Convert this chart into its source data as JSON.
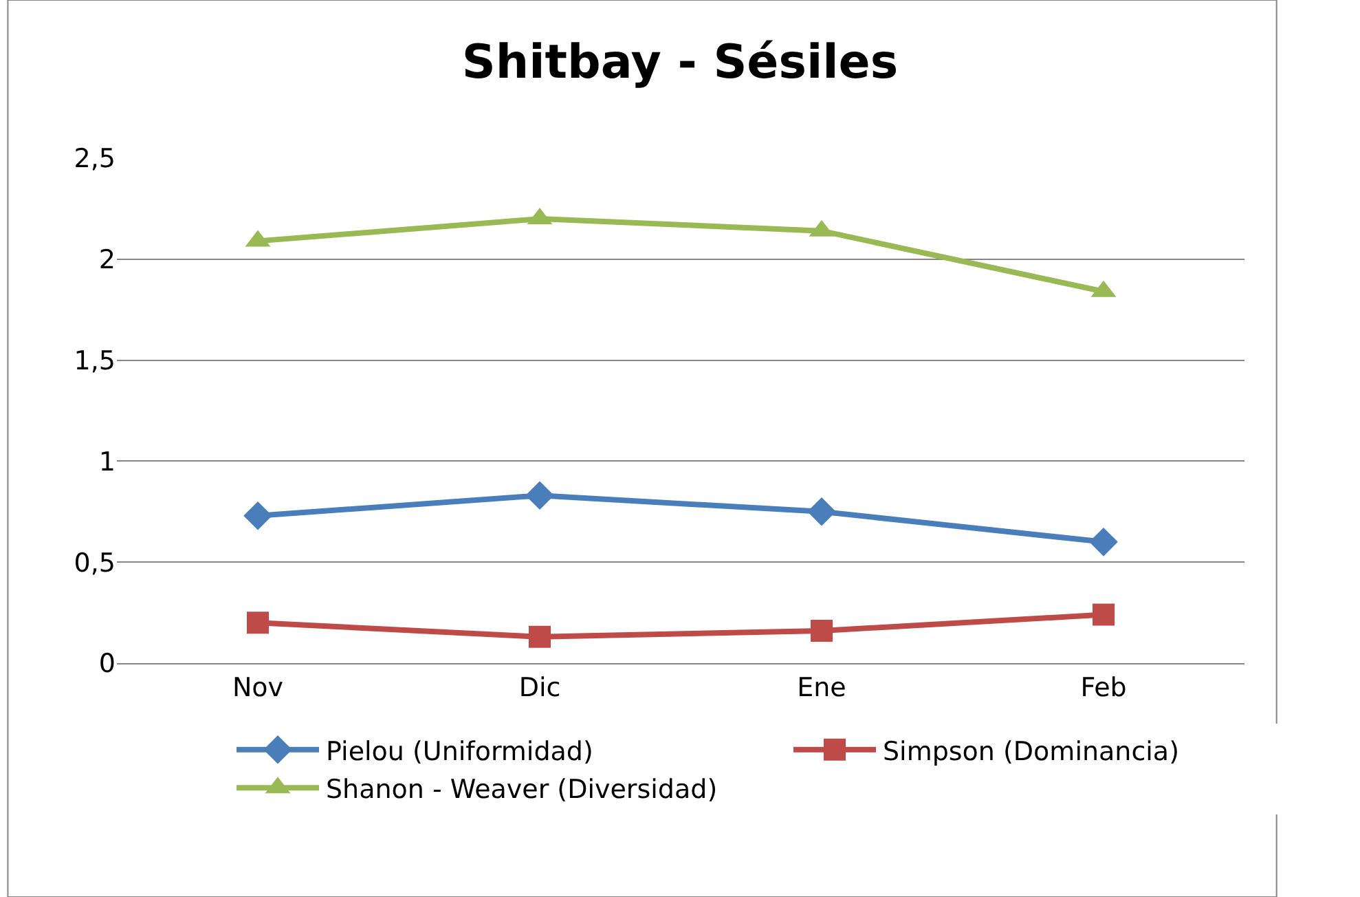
{
  "chart_data": {
    "type": "line",
    "title": "Shitbay - Sésiles",
    "categories": [
      "Nov",
      "Dic",
      "Ene",
      "Feb"
    ],
    "series": [
      {
        "name": "Pielou (Uniformidad)",
        "color": "#4a7ebb",
        "marker": "diamond",
        "values": [
          0.73,
          0.83,
          0.75,
          0.6
        ]
      },
      {
        "name": "Simpson (Dominancia)",
        "color": "#be4b48",
        "marker": "square",
        "values": [
          0.2,
          0.13,
          0.16,
          0.24
        ]
      },
      {
        "name": "Shanon - Weaver (Diversidad)",
        "color": "#98b954",
        "marker": "triangle",
        "values": [
          2.09,
          2.2,
          2.14,
          1.84
        ]
      }
    ],
    "ylim": [
      0,
      2.5
    ],
    "yticks": [
      {
        "value": 0,
        "label": "0"
      },
      {
        "value": 0.5,
        "label": "0,5"
      },
      {
        "value": 1,
        "label": "1"
      },
      {
        "value": 1.5,
        "label": "1,5"
      },
      {
        "value": 2,
        "label": "2"
      },
      {
        "value": 2.5,
        "label": "2,5"
      }
    ],
    "grid": "y",
    "legend": "bottom",
    "line_style": "solid"
  }
}
